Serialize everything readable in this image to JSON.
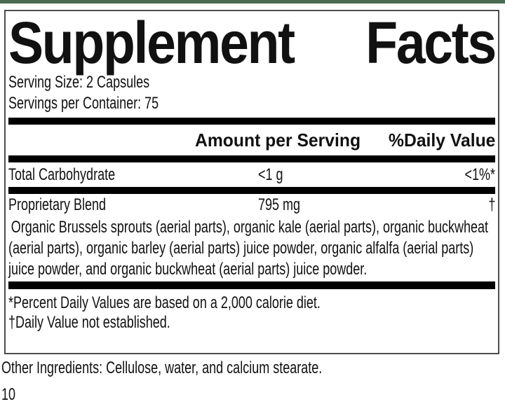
{
  "colors": {
    "top_bar": "#4a6b52",
    "rule": "#000000",
    "panel_border": "#4d4d4d"
  },
  "label": {
    "title": "Supplement Facts",
    "title_words": [
      "Supplement",
      "Facts"
    ],
    "serving_size": "Serving Size: 2 Capsules",
    "servings_per_container": "Servings per Container: 75",
    "columns": {
      "amount_header": "Amount per Serving",
      "dv_header": "%Daily Value"
    },
    "rows": [
      {
        "name": "Total Carbohydrate",
        "amount": "<1 g",
        "dv": "<1%*"
      },
      {
        "name": "Proprietary Blend",
        "amount": "795 mg",
        "dv": "†"
      }
    ],
    "blend_description": "Organic Brussels sprouts (aerial parts), organic kale (aerial parts), organic buckwheat (aerial parts), organic barley (aerial parts) juice powder, organic alfalfa (aerial parts) juice powder, and organic buckwheat (aerial parts) juice powder.",
    "footnotes": [
      "*Percent Daily Values are based on a 2,000 calorie diet.",
      "†Daily Value not established."
    ]
  },
  "other_ingredients": "Other Ingredients: Cellulose, water, and calcium stearate.",
  "page_number": "10"
}
